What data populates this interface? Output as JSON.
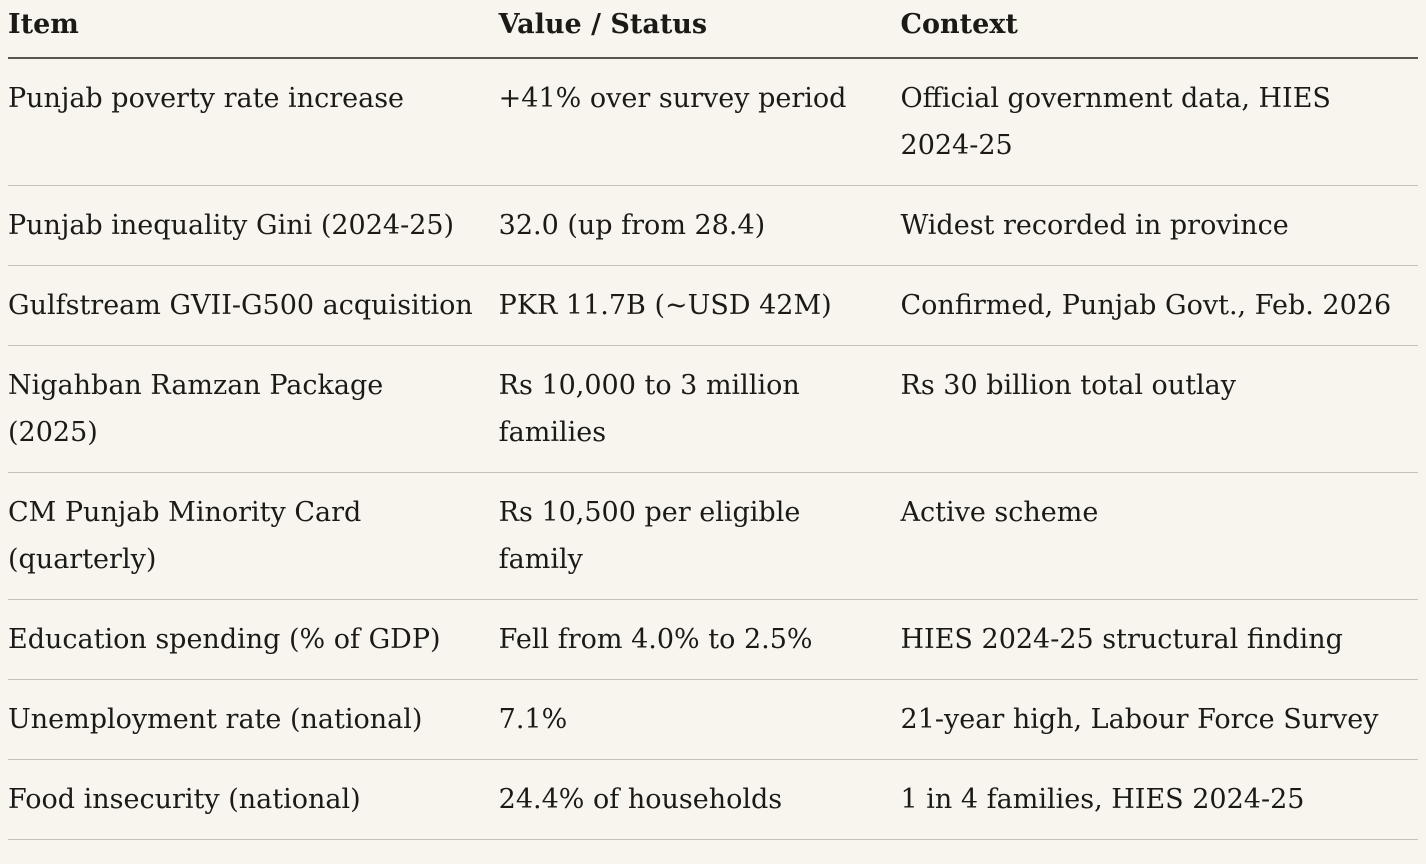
{
  "colors": {
    "background": "#f7f5ee",
    "text": "#1b1a17",
    "header_rule": "#57564f",
    "row_rule": "#c4c3bb"
  },
  "chart_data": {
    "type": "table",
    "columns": [
      "Item",
      "Value / Status",
      "Context"
    ],
    "rows": [
      [
        "Punjab poverty rate increase",
        "+41% over survey period",
        "Official government data, HIES 2024-25"
      ],
      [
        "Punjab inequality Gini (2024-25)",
        "32.0 (up from 28.4)",
        "Widest recorded in province"
      ],
      [
        "Gulfstream GVII-G500 acquisition",
        "PKR 11.7B (~USD 42M)",
        "Confirmed, Punjab Govt., Feb. 2026"
      ],
      [
        "Nigahban Ramzan Package (2025)",
        "Rs 10,000 to 3 million families",
        "Rs 30 billion total outlay"
      ],
      [
        "CM Punjab Minority Card (quarterly)",
        "Rs 10,500 per eligible family",
        "Active scheme"
      ],
      [
        "Education spending (% of GDP)",
        "Fell from 4.0% to 2.5%",
        "HIES 2024-25 structural finding"
      ],
      [
        "Unemployment rate (national)",
        "7.1%",
        "21-year high, Labour Force Survey"
      ],
      [
        "Food insecurity (national)",
        "24.4% of households",
        "1 in 4 families, HIES 2024-25"
      ]
    ]
  }
}
